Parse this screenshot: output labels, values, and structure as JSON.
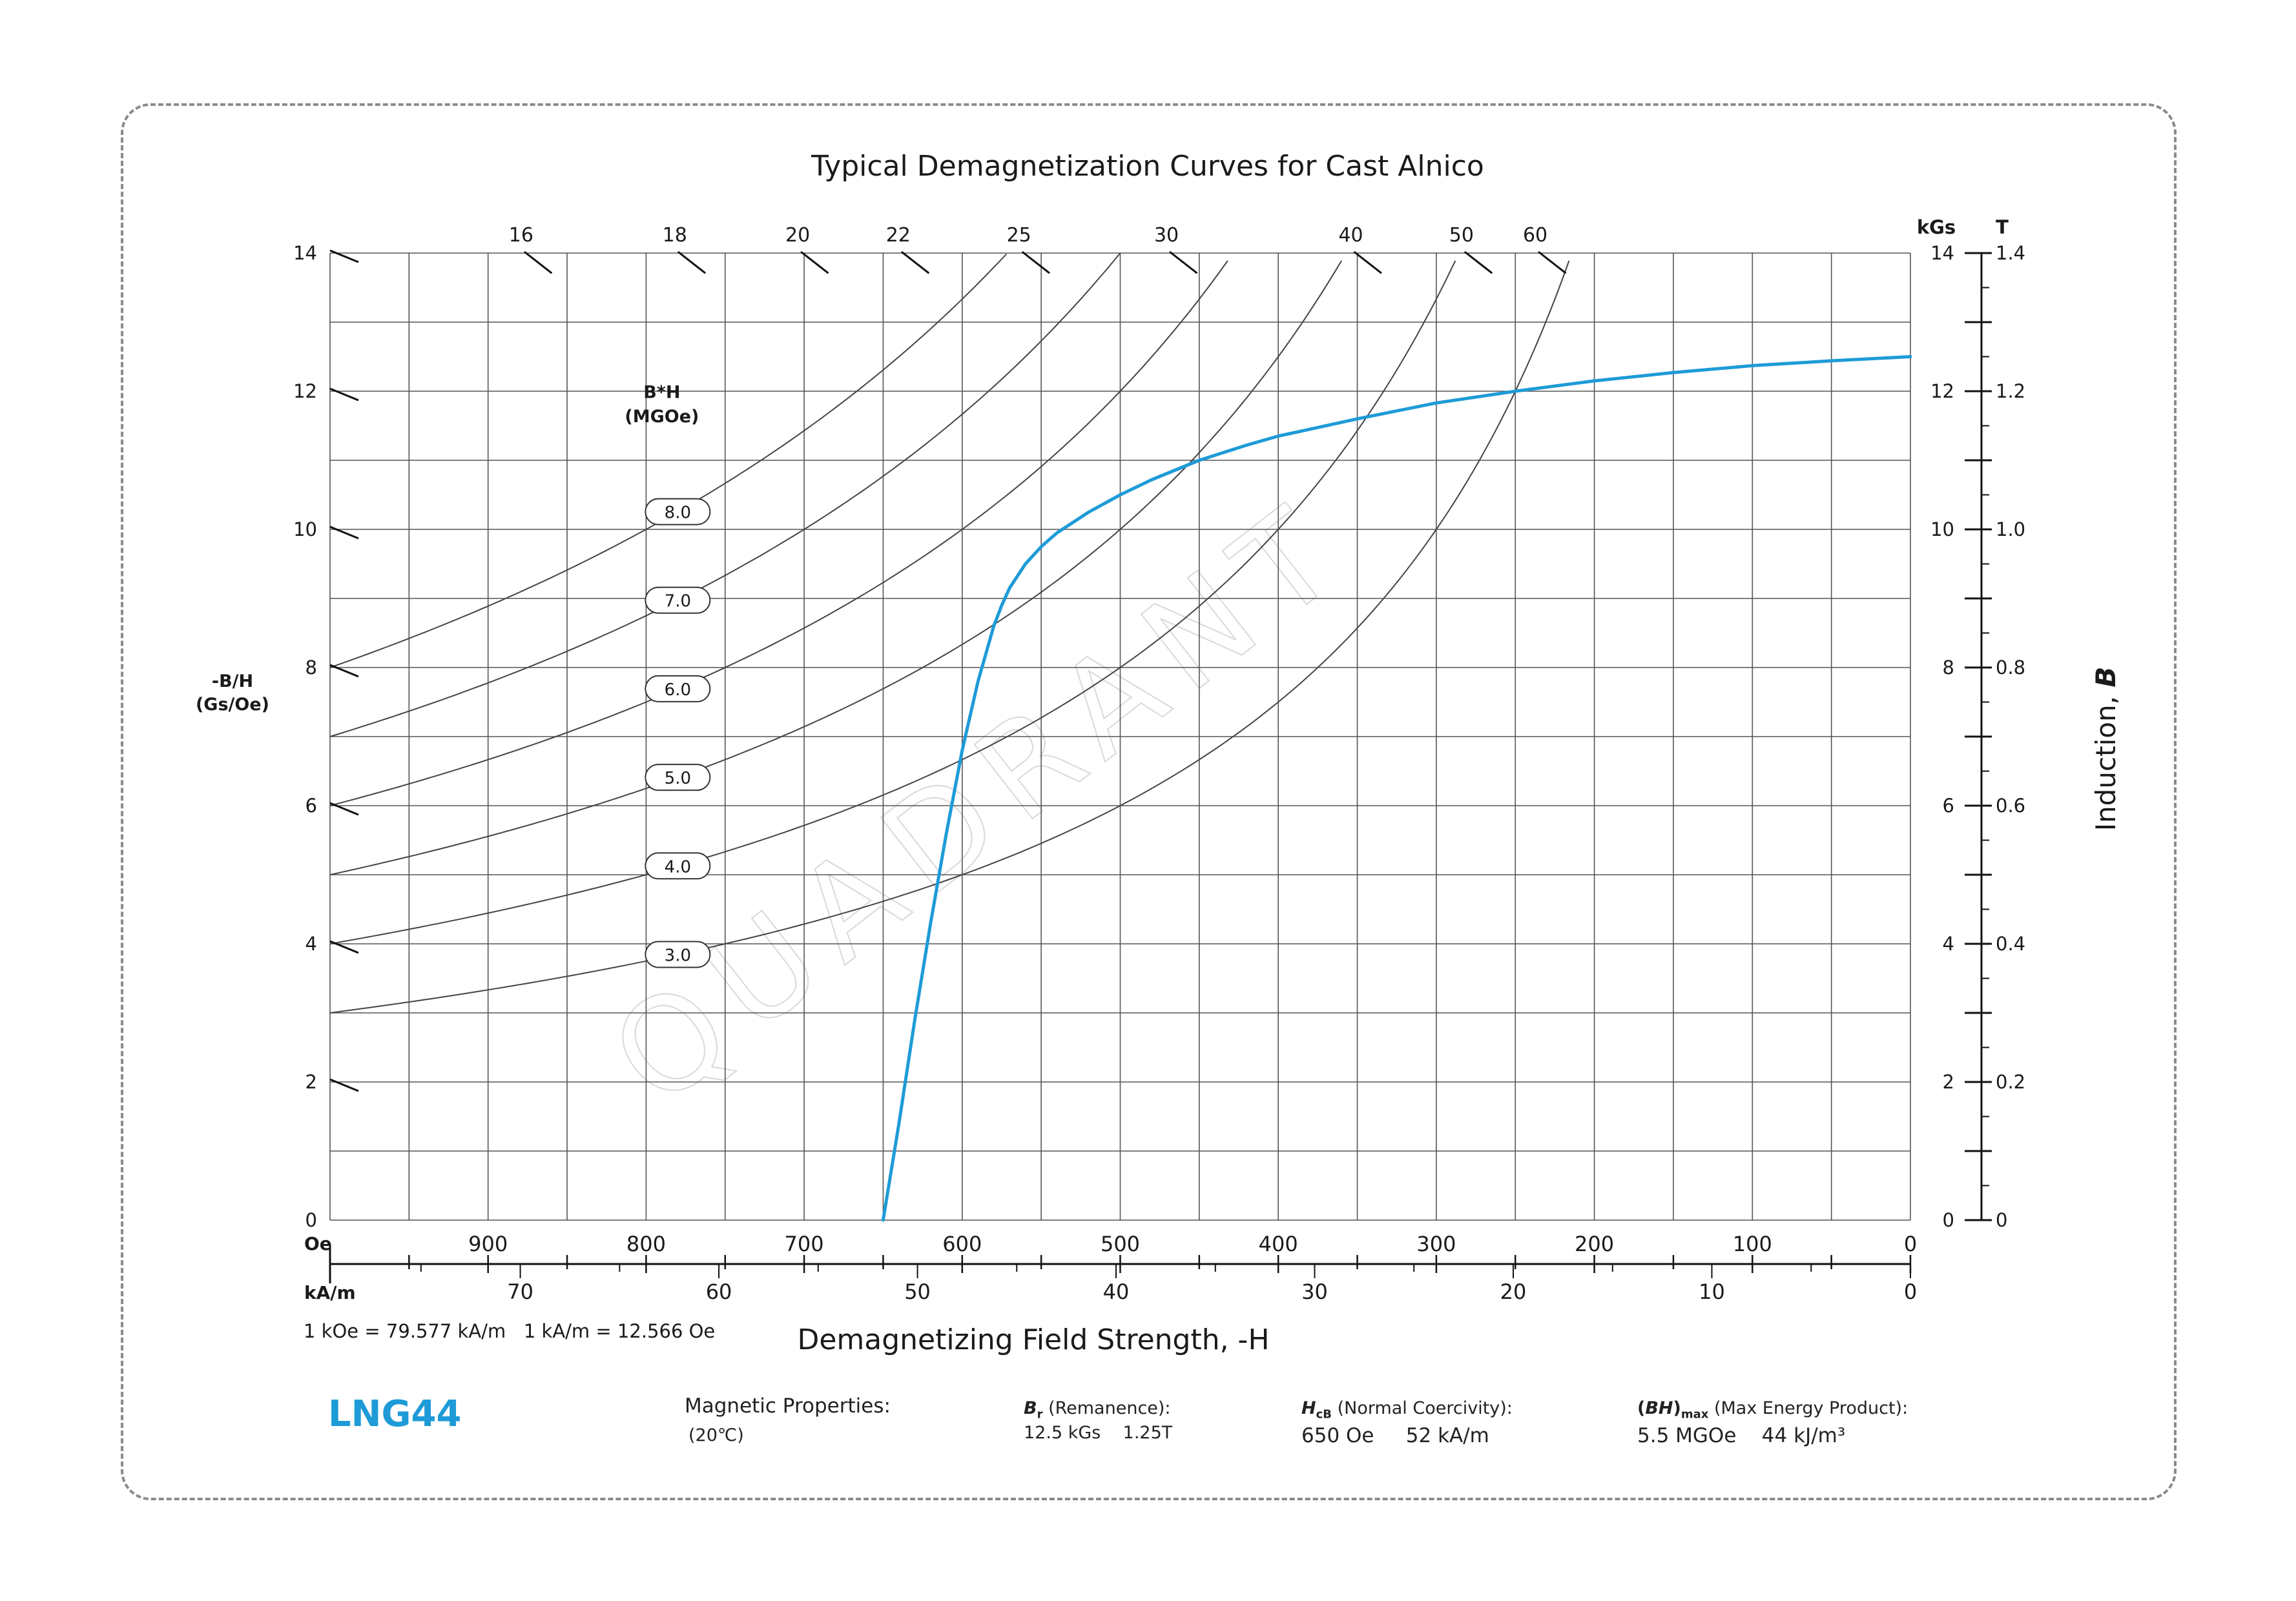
{
  "chart_data": {
    "type": "line",
    "title": "Typical Demagnetization Curves for Cast Alnico",
    "xlabel": "Demagnetizing Field Strength, -H",
    "x_units_primary": "Oe",
    "x_units_secondary": "kA/m",
    "x_range_oe": [
      1000,
      0
    ],
    "x_ticks_oe": [
      "900",
      "800",
      "700",
      "600",
      "500",
      "400",
      "300",
      "200",
      "100",
      "0"
    ],
    "x_tick_values_oe": [
      900,
      800,
      700,
      600,
      500,
      400,
      300,
      200,
      100,
      0
    ],
    "x_ticks_kam": [
      "70",
      "60",
      "50",
      "40",
      "30",
      "20",
      "10",
      "0"
    ],
    "x_tick_values_kam": [
      70,
      60,
      50,
      40,
      30,
      20,
      10,
      0
    ],
    "unit_conversion_note": "1 kOe = 79.577 kA/m   1 kA/m = 12.566 Oe",
    "ylabel_left": "-B/H\n(Gs/Oe)",
    "ylabel_left_line1": "-B/H",
    "ylabel_left_line2": "(Gs/Oe)",
    "ylabel_right": "Induction, B",
    "ylabel_right_text": "Induction, ",
    "ylabel_right_symbol": "B",
    "y_units_kgs": "kGs",
    "y_units_t": "T",
    "y_range_kgs": [
      0,
      14
    ],
    "y_ticks_kgs": [
      "0",
      "2",
      "4",
      "6",
      "8",
      "10",
      "12",
      "14"
    ],
    "y_tick_values_kgs": [
      0,
      2,
      4,
      6,
      8,
      10,
      12,
      14
    ],
    "y_ticks_t": [
      "0",
      "0.2",
      "0.4",
      "0.6",
      "0.8",
      "1.0",
      "1.2",
      "1.4"
    ],
    "left_bh_ticks": [
      "0",
      "2",
      "4",
      "6",
      "8",
      "10",
      "12",
      "14"
    ],
    "top_bh_ticks": [
      "16",
      "18",
      "20",
      "22",
      "25",
      "30",
      "40",
      "50",
      "60"
    ],
    "top_bh_values": [
      16,
      18,
      20,
      22,
      25,
      30,
      40,
      50,
      60
    ],
    "grid": true,
    "energy_product_label": "B*H\n(MGOe)",
    "energy_product_label_line1": "B*H",
    "energy_product_label_line2": "(MGOe)",
    "energy_product_curves": [
      {
        "label": "8.0",
        "value": 8.0
      },
      {
        "label": "7.0",
        "value": 7.0
      },
      {
        "label": "6.0",
        "value": 6.0
      },
      {
        "label": "5.0",
        "value": 5.0
      },
      {
        "label": "4.0",
        "value": 4.0
      },
      {
        "label": "3.0",
        "value": 3.0
      }
    ],
    "series": [
      {
        "name": "LNG44",
        "color": "#1e9bd7",
        "x_oe": [
          650,
          640,
          630,
          620,
          610,
          600,
          590,
          580,
          575,
          570,
          560,
          550,
          540,
          520,
          500,
          480,
          450,
          420,
          400,
          380,
          350,
          300,
          250,
          200,
          150,
          100,
          50,
          0
        ],
        "y_kgs": [
          0,
          1.4,
          2.9,
          4.3,
          5.6,
          6.8,
          7.8,
          8.6,
          8.9,
          9.15,
          9.5,
          9.75,
          9.95,
          10.25,
          10.5,
          10.72,
          11.0,
          11.22,
          11.35,
          11.45,
          11.6,
          11.83,
          12.0,
          12.15,
          12.27,
          12.37,
          12.44,
          12.5
        ]
      }
    ],
    "watermark": "QUADRANT"
  },
  "footer": {
    "brand": "LNG44",
    "brand_color": "#1e9bd7",
    "properties_title": "Magnetic Properties:",
    "temperature": "(20℃)",
    "br_symbol": "B",
    "br_sub": "r",
    "br_label": " (Remanence):",
    "br_value": "12.5 kGs    1.25T",
    "hcb_symbol": "H",
    "hcb_sub": "cB",
    "hcb_label": " (Normal Coercivity):",
    "hcb_value": "650 Oe     52 kA/m",
    "bh_open": "(",
    "bh_symbol": "BH",
    "bh_close": ")",
    "bh_sub": "max",
    "bh_label": " (Max Energy Product):",
    "bh_value": "5.5 MGOe    44 kJ/m³"
  }
}
